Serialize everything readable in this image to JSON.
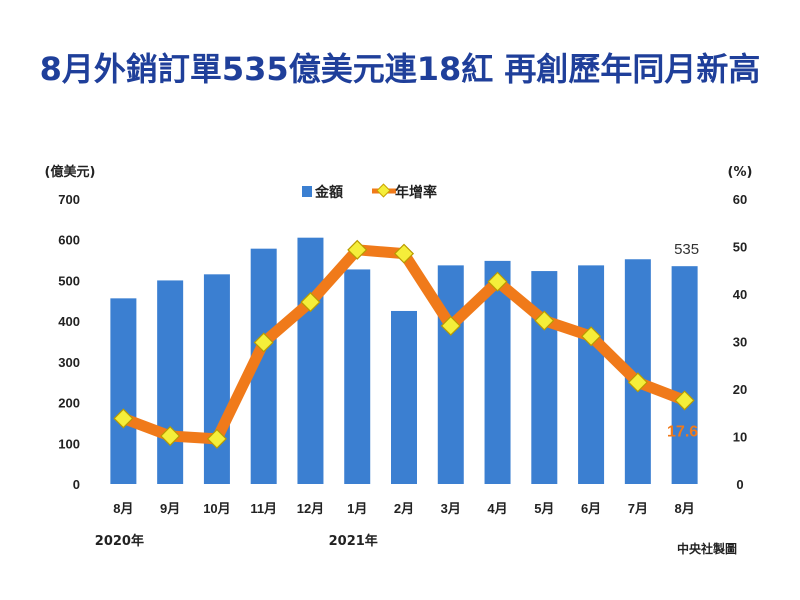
{
  "title": "8月外銷訂單535億美元連18紅 再創歷年同月新高",
  "credit": "中央社製圖",
  "chart_data": {
    "type": "bar",
    "categories": [
      "8月",
      "9月",
      "10月",
      "11月",
      "12月",
      "1月",
      "2月",
      "3月",
      "4月",
      "5月",
      "6月",
      "7月",
      "8月"
    ],
    "year_labels": [
      {
        "text": "2020年",
        "category_index": 0
      },
      {
        "text": "2021年",
        "category_index": 5
      }
    ],
    "left_axis": {
      "unit_label": "(億美元)",
      "ylim": [
        0,
        700
      ],
      "ticks": [
        "0",
        "100",
        "200",
        "300",
        "400",
        "500",
        "600",
        "700"
      ]
    },
    "right_axis": {
      "unit_label": "(%)",
      "ylim": [
        0,
        60
      ],
      "ticks": [
        "0",
        "10",
        "20",
        "30",
        "40",
        "50",
        "60"
      ]
    },
    "legend": {
      "placement": "top-center",
      "items": [
        {
          "name": "金額",
          "kind": "bar",
          "color": "#3b7fd1"
        },
        {
          "name": "年增率",
          "kind": "line",
          "color": "#f07a1a",
          "marker_color": "#f5ee3a"
        }
      ]
    },
    "series": [
      {
        "name": "金額",
        "kind": "bar",
        "axis": "left",
        "color": "#3b7fd1",
        "values": [
          456,
          500,
          515,
          578,
          605,
          527,
          425,
          537,
          548,
          523,
          537,
          552,
          535
        ]
      },
      {
        "name": "年增率",
        "kind": "line",
        "axis": "right",
        "color": "#f07a1a",
        "marker_color": "#f5ee3a",
        "values": [
          13.8,
          10.1,
          9.5,
          29.8,
          38.3,
          49.3,
          48.5,
          33.3,
          42.6,
          34.4,
          31.1,
          21.4,
          17.6
        ]
      }
    ],
    "annotations": [
      {
        "series": "金額",
        "category_index": 12,
        "text": "535"
      },
      {
        "series": "年增率",
        "category_index": 12,
        "text": "17.6"
      }
    ],
    "grid": false
  }
}
